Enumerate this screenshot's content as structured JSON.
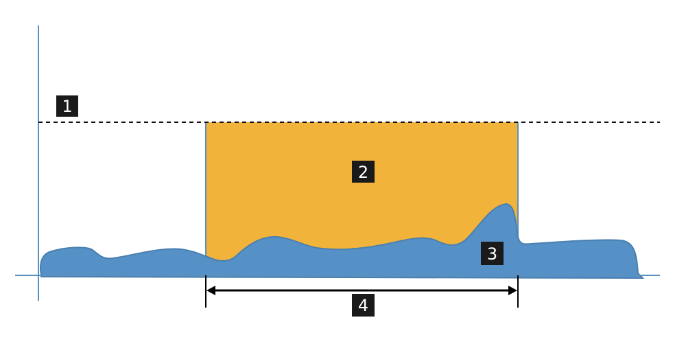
{
  "colors": {
    "axis": "#5b8fbf",
    "threshold_line": "#111111",
    "window_fill": "#F2B33A",
    "signal_fill": "#5591C6",
    "signal_stroke": "#4a7fb0",
    "label_bg": "#1a1a1a",
    "label_text": "#ffffff",
    "measure_arrow": "#000000"
  },
  "labels": {
    "threshold": "1",
    "window": "2",
    "signal": "3",
    "duration": "4"
  }
}
